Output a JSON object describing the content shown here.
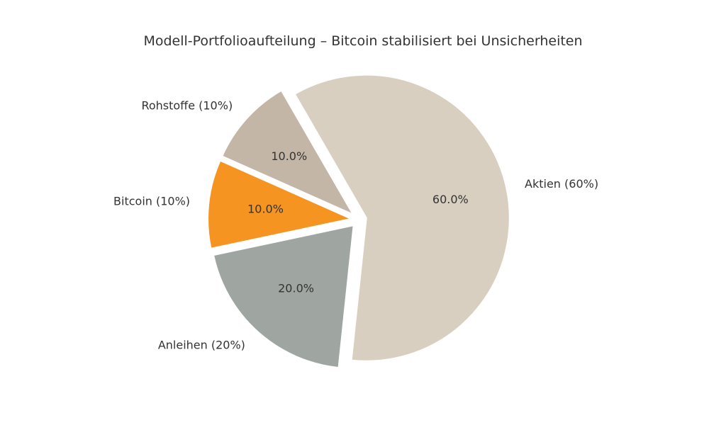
{
  "chart_data": {
    "type": "pie",
    "title": "Modell-Portfolioaufteilung – Bitcoin stabilisiert bei Unsicherheiten",
    "start_angle_deg": 120,
    "direction": "clockwise",
    "slices": [
      {
        "key": "aktien",
        "label": "Aktien (60%)",
        "value": 60,
        "pct_label": "60.0%",
        "color": "#d8cfc0",
        "exploded": true
      },
      {
        "key": "anleihen",
        "label": "Anleihen (20%)",
        "value": 20,
        "pct_label": "20.0%",
        "color": "#9fa5a0",
        "exploded": true
      },
      {
        "key": "bitcoin",
        "label": "Bitcoin (10%)",
        "value": 10,
        "pct_label": "10.0%",
        "color": "#f59420",
        "exploded": true
      },
      {
        "key": "rohstoffe",
        "label": "Rohstoffe (10%)",
        "value": 10,
        "pct_label": "10.0%",
        "color": "#c3b6a6",
        "exploded": true
      }
    ]
  }
}
